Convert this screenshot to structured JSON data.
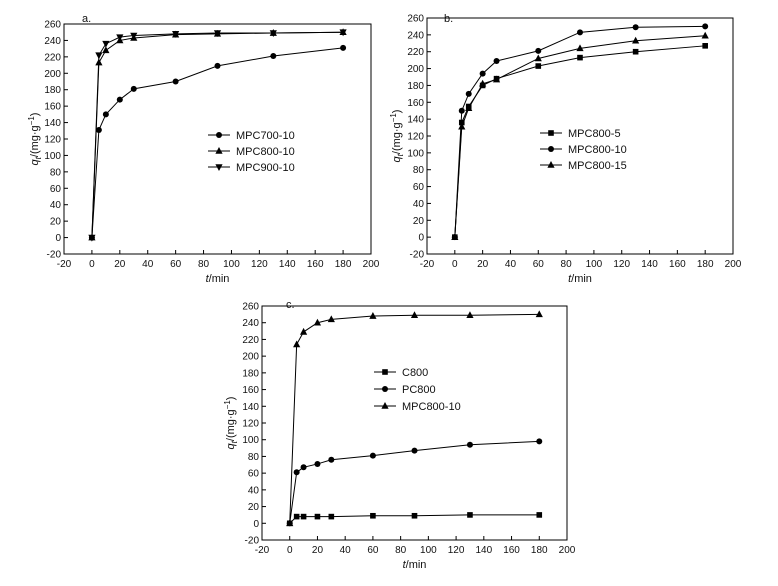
{
  "chart_data": [
    {
      "type": "line",
      "panel_label": "a.",
      "title": "",
      "xlabel": "t/min",
      "ylabel": "qt/(mg·g−1)",
      "xlim": [
        -20,
        200
      ],
      "ylim": [
        -20,
        260
      ],
      "x_ticks": [
        -20,
        0,
        20,
        40,
        60,
        80,
        100,
        120,
        140,
        160,
        180,
        200
      ],
      "y_ticks": [
        -20,
        0,
        20,
        40,
        60,
        80,
        100,
        120,
        140,
        160,
        180,
        200,
        220,
        240,
        260
      ],
      "legend_position": "center-right",
      "series": [
        {
          "name": "MPC700-10",
          "marker": "circle",
          "x": [
            0,
            5,
            10,
            20,
            30,
            60,
            90,
            130,
            180
          ],
          "values": [
            0,
            131,
            150,
            168,
            181,
            190,
            209,
            221,
            231
          ]
        },
        {
          "name": "MPC800-10",
          "marker": "triangle-up",
          "x": [
            0,
            5,
            10,
            20,
            30,
            60,
            90,
            130,
            180
          ],
          "values": [
            0,
            213,
            228,
            240,
            243,
            247,
            248,
            249,
            250
          ]
        },
        {
          "name": "MPC900-10",
          "marker": "triangle-down",
          "x": [
            0,
            5,
            10,
            20,
            30,
            60,
            90,
            130,
            180
          ],
          "values": [
            0,
            222,
            236,
            244,
            246,
            248,
            249,
            249,
            250
          ]
        }
      ]
    },
    {
      "type": "line",
      "panel_label": "b.",
      "title": "",
      "xlabel": "t/min",
      "ylabel": "qt/(mg·g−1)",
      "xlim": [
        -20,
        200
      ],
      "ylim": [
        -20,
        260
      ],
      "x_ticks": [
        -20,
        0,
        20,
        40,
        60,
        80,
        100,
        120,
        140,
        160,
        180,
        200
      ],
      "y_ticks": [
        -20,
        0,
        20,
        40,
        60,
        80,
        100,
        120,
        140,
        160,
        180,
        200,
        220,
        240,
        260
      ],
      "legend_position": "center-right",
      "series": [
        {
          "name": "MPC800-5",
          "marker": "square",
          "x": [
            0,
            5,
            10,
            20,
            30,
            60,
            90,
            130,
            180
          ],
          "values": [
            0,
            136,
            155,
            180,
            188,
            203,
            213,
            220,
            227
          ]
        },
        {
          "name": "MPC800-10",
          "marker": "circle",
          "x": [
            0,
            5,
            10,
            20,
            30,
            60,
            90,
            130,
            180
          ],
          "values": [
            0,
            150,
            170,
            194,
            209,
            221,
            243,
            249,
            250
          ]
        },
        {
          "name": "MPC800-15",
          "marker": "triangle-up",
          "x": [
            0,
            5,
            10,
            20,
            30,
            60,
            90,
            130,
            180
          ],
          "values": [
            0,
            131,
            153,
            182,
            187,
            212,
            224,
            233,
            239
          ]
        }
      ]
    },
    {
      "type": "line",
      "panel_label": "c.",
      "title": "",
      "xlabel": "t/min",
      "ylabel": "qt/(mg·g−1)",
      "xlim": [
        -20,
        200
      ],
      "ylim": [
        -20,
        260
      ],
      "x_ticks": [
        -20,
        0,
        20,
        40,
        60,
        80,
        100,
        120,
        140,
        160,
        180,
        200
      ],
      "y_ticks": [
        -20,
        0,
        20,
        40,
        60,
        80,
        100,
        120,
        140,
        160,
        180,
        200,
        220,
        240,
        260
      ],
      "legend_position": "center-right",
      "series": [
        {
          "name": "C800",
          "marker": "square",
          "x": [
            0,
            5,
            10,
            20,
            30,
            60,
            90,
            130,
            180
          ],
          "values": [
            0,
            8,
            8,
            8,
            8,
            9,
            9,
            10,
            10
          ]
        },
        {
          "name": "PC800",
          "marker": "circle",
          "x": [
            0,
            5,
            10,
            20,
            30,
            60,
            90,
            130,
            180
          ],
          "values": [
            0,
            61,
            67,
            71,
            76,
            81,
            87,
            94,
            98
          ]
        },
        {
          "name": "MPC800-10",
          "marker": "triangle-up",
          "x": [
            0,
            5,
            10,
            20,
            30,
            60,
            90,
            130,
            180
          ],
          "values": [
            0,
            214,
            229,
            240,
            244,
            248,
            249,
            249,
            250
          ]
        }
      ]
    }
  ]
}
